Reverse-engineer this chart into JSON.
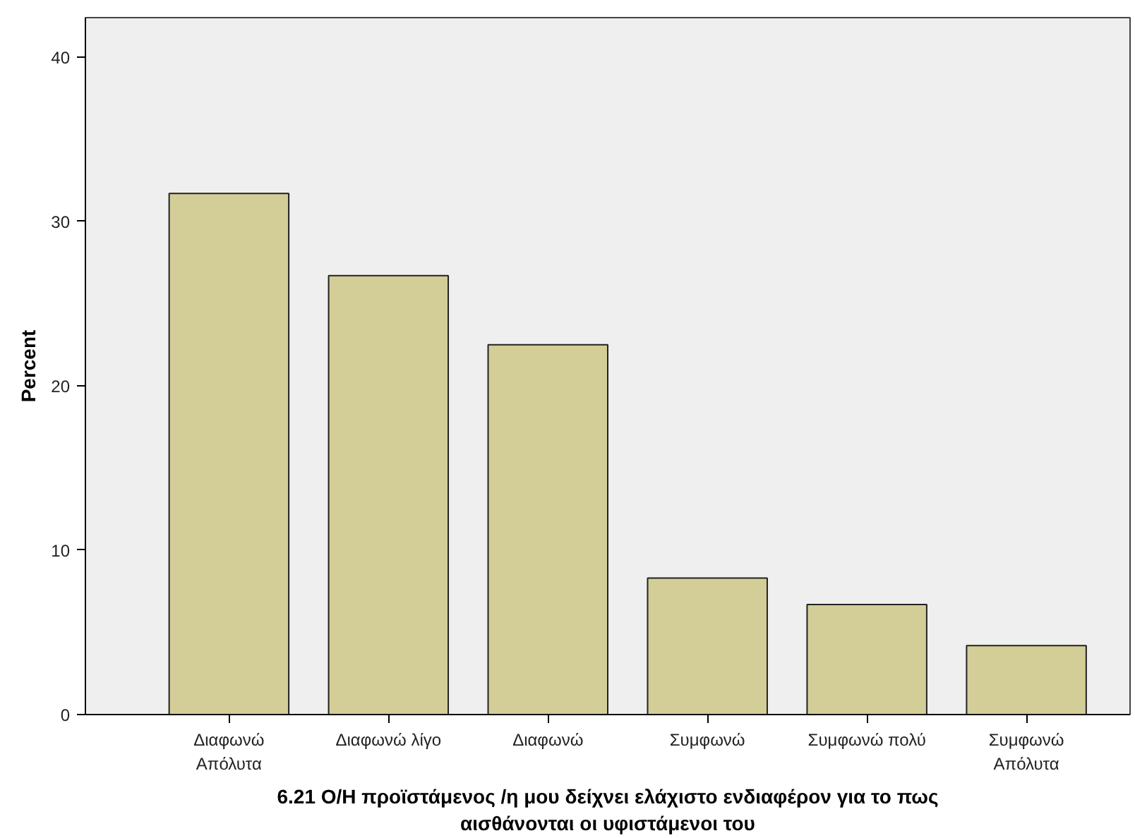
{
  "chart_data": {
    "type": "bar",
    "xlabel": "6.21 Ο/Η προϊστάμενος /η μου δείχνει ελάχιστο ενδιαφέρον για το πως\nαισθάνονται οι υφιστάμενοι του",
    "ylabel": "Percent",
    "categories": [
      "Διαφωνώ\nΑπόλυτα",
      "Διαφωνώ λίγο",
      "Διαφωνώ",
      "Συμφωνώ",
      "Συμφωνώ πολύ",
      "Συμφωνώ\nΑπόλυτα"
    ],
    "values": [
      31.7,
      26.7,
      22.5,
      8.3,
      6.7,
      4.2
    ],
    "color": "#d3ce97",
    "ylim": [
      0,
      42.4
    ],
    "yticks": [
      0,
      10,
      20,
      30,
      40
    ],
    "grid": false
  }
}
